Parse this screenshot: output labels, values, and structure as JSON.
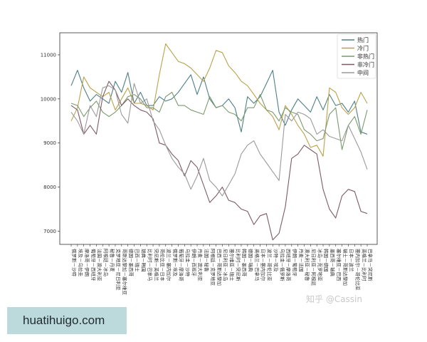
{
  "chart_data": {
    "type": "line",
    "title": "",
    "xlabel": "",
    "ylabel": "",
    "ylim": [
      6700,
      11500
    ],
    "yticks": [
      7000,
      8000,
      9000,
      10000,
      11000
    ],
    "ytick_labels": [
      "7000",
      "8000",
      "9000",
      "10000",
      "11000"
    ],
    "categories": [
      "俄罗斯－沙特",
      "埃及－乌拉圭",
      "摩洛哥－伊朗",
      "葡萄牙－西班牙",
      "法国－澳大利亚",
      "阿根廷－冰岛",
      "秘鲁－丹麦",
      "克罗地亚－尼日利亚",
      "哥斯达黎加－塞尔维亚",
      "德国－墨西哥",
      "巴西－瑞士",
      "瑞典－韩国",
      "比利时－巴拿马",
      "突尼斯－英格兰",
      "哥伦比亚－日本",
      "波兰－塞内加尔",
      "俄罗斯－埃及",
      "葡萄牙－摩洛哥",
      "乌拉圭－沙特",
      "伊朗－西班牙",
      "丹麦－澳大利亚",
      "法国－秘鲁",
      "阿根廷－克罗地亚",
      "巴西－哥斯达黎加",
      "尼日利亚－冰岛",
      "塞尔维亚－瑞士",
      "比利时－突尼斯",
      "韩国－墨西哥",
      "德国－瑞典",
      "英格兰－巴拿马",
      "日本－塞内加尔",
      "波兰－哥伦比亚",
      "沙特－埃及",
      "乌拉圭－俄罗斯",
      "西班牙－摩洛哥",
      "伊朗－葡萄牙",
      "丹麦－法国",
      "澳大利亚－秘鲁",
      "尼日利亚－阿根廷",
      "冰岛－克罗地亚",
      "韩国－德国",
      "墨西哥－瑞典",
      "塞尔维亚－巴西",
      "瑞士－哥斯达黎加",
      "日本－波兰",
      "塞内加尔－哥伦比亚",
      "英格兰－比利时",
      "巴拿马－突尼斯"
    ],
    "series": [
      {
        "name": "热门",
        "color": "#4e7f86",
        "values": [
          10300,
          10650,
          10250,
          9950,
          10100,
          10000,
          9900,
          10400,
          10150,
          10600,
          9900,
          10150,
          9850,
          9850,
          10050,
          9950,
          10000,
          10150,
          10350,
          10550,
          10100,
          10500,
          10000,
          9800,
          9850,
          10000,
          9800,
          9250,
          10050,
          9900,
          10050,
          10350,
          10650,
          9700,
          9400,
          9750,
          10000,
          9850,
          9700,
          10050,
          9750,
          10100,
          9850,
          9900,
          9700,
          9950,
          9250,
          9200
        ]
      },
      {
        "name": "冷门",
        "color": "#b9a24a",
        "values": [
          9500,
          9800,
          10500,
          10250,
          10150,
          10050,
          10150,
          9750,
          10000,
          10250,
          9900,
          9900,
          9850,
          9750,
          10550,
          11250,
          11050,
          10850,
          10800,
          10700,
          10550,
          10400,
          10700,
          11100,
          11050,
          10750,
          10600,
          10400,
          10300,
          10100,
          9900,
          9750,
          9600,
          9300,
          9850,
          9650,
          9400,
          9200,
          8900,
          8950,
          8700,
          10250,
          10150,
          9800,
          9650,
          9800,
          10150,
          9900
        ]
      },
      {
        "name": "非热门",
        "color": "#7a9a6c",
        "values": [
          9900,
          9850,
          9600,
          9800,
          9950,
          9700,
          9600,
          9700,
          9850,
          10050,
          10100,
          10000,
          9800,
          9800,
          9700,
          10050,
          10150,
          9850,
          9850,
          9750,
          9700,
          9650,
          10050,
          9800,
          9850,
          9700,
          9650,
          9500,
          9800,
          9800,
          10100,
          9750,
          9700,
          9500,
          9800,
          9700,
          9650,
          9300,
          9200,
          9050,
          9100,
          9650,
          9800,
          8850,
          9400,
          9600,
          9200,
          9750
        ]
      },
      {
        "name": "非冷门",
        "color": "#7d5a66",
        "values": [
          9850,
          9750,
          9200,
          9400,
          9200,
          10050,
          10400,
          10200,
          9850,
          10000,
          9850,
          9750,
          9700,
          9550,
          9000,
          8950,
          8750,
          8600,
          8250,
          8600,
          8450,
          8050,
          7650,
          7800,
          8000,
          7700,
          7650,
          7500,
          7450,
          7150,
          7350,
          7400,
          6800,
          6950,
          7550,
          8650,
          8750,
          8950,
          8850,
          8750,
          7950,
          7500,
          7300,
          7800,
          7950,
          7900,
          7450,
          7400
        ]
      },
      {
        "name": "中间",
        "color": "#9a9a9a",
        "values": [
          9700,
          9500,
          9200,
          9850,
          9600,
          10250,
          10300,
          10200,
          9650,
          9450,
          10350,
          9900,
          10000,
          9500,
          9300,
          8950,
          8650,
          8450,
          8300,
          7950,
          8250,
          8650,
          8150,
          8000,
          7800,
          8050,
          8300,
          8750,
          8950,
          9050,
          8750,
          8550,
          8350,
          8150,
          9650,
          9500,
          9700,
          9650,
          9550,
          9200,
          9300,
          9150,
          9100,
          9050,
          9400,
          9100,
          8800,
          8400
        ]
      }
    ],
    "legend_position": "top-right",
    "grid": false,
    "watermark": "知乎 @Cassin"
  },
  "site_banner": "huatihuigo.com"
}
